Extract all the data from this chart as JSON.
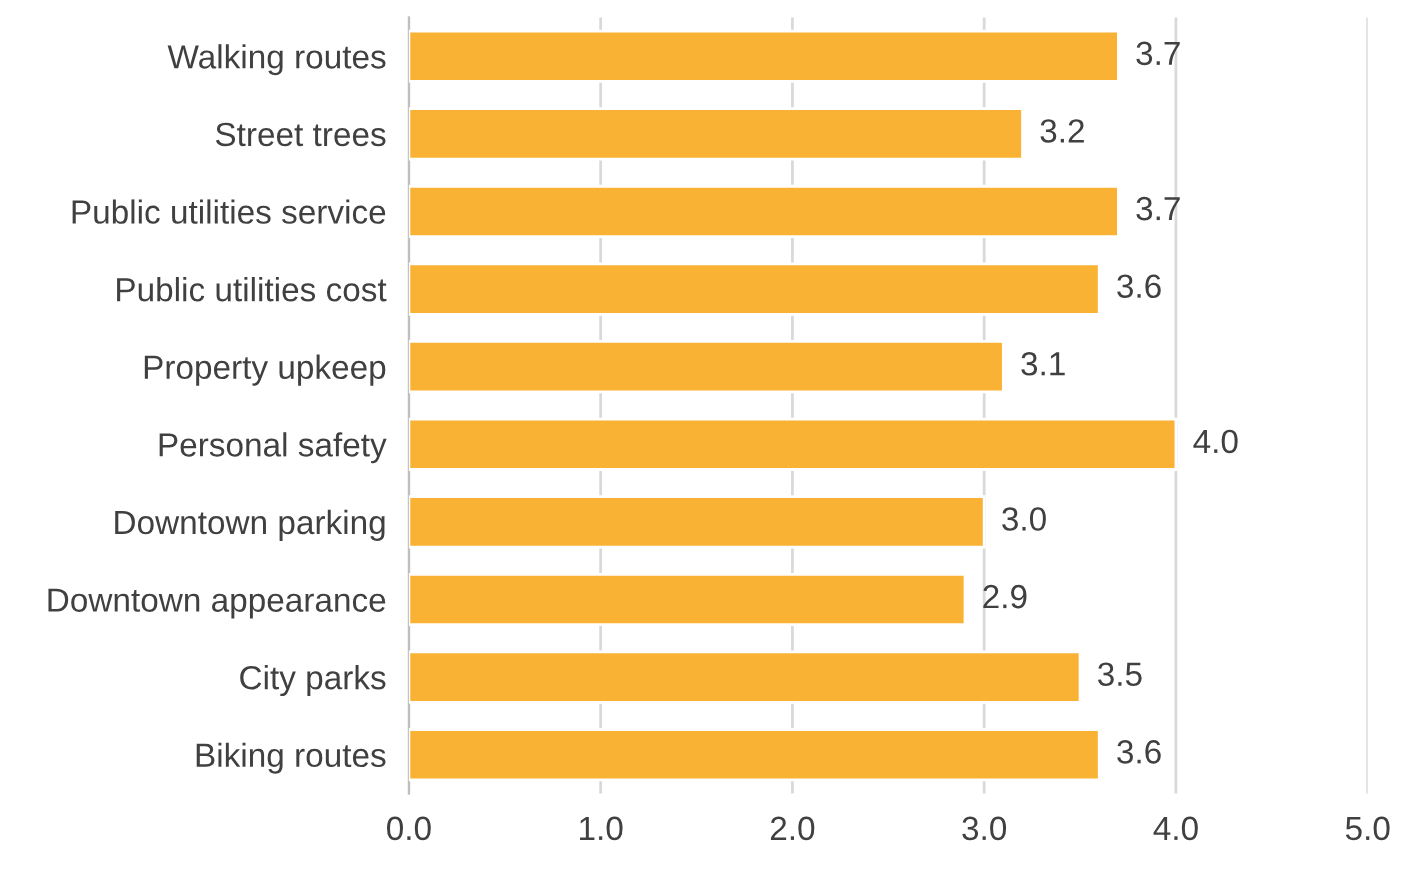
{
  "chart_data": {
    "type": "bar",
    "orientation": "horizontal",
    "categories": [
      "Walking routes",
      "Street trees",
      "Public utilities service",
      "Public utilities cost",
      "Property upkeep",
      "Personal safety",
      "Downtown parking",
      "Downtown appearance",
      "City parks",
      "Biking routes"
    ],
    "values": [
      3.7,
      3.2,
      3.7,
      3.6,
      3.1,
      4.0,
      3.0,
      2.9,
      3.5,
      3.6
    ],
    "value_labels": [
      "3.7",
      "3.2",
      "3.7",
      "3.6",
      "3.1",
      "4.0",
      "3.0",
      "2.9",
      "3.5",
      "3.6"
    ],
    "color": "#f9b233",
    "xlim": [
      0,
      5
    ],
    "xticks": [
      {
        "value": 0,
        "label": "0.0"
      },
      {
        "value": 1,
        "label": "1.0"
      },
      {
        "value": 2,
        "label": "2.0"
      },
      {
        "value": 3,
        "label": "3.0"
      },
      {
        "value": 4,
        "label": "4.0"
      },
      {
        "value": 5,
        "label": "5.0"
      }
    ],
    "grid": "x",
    "legend": false
  }
}
